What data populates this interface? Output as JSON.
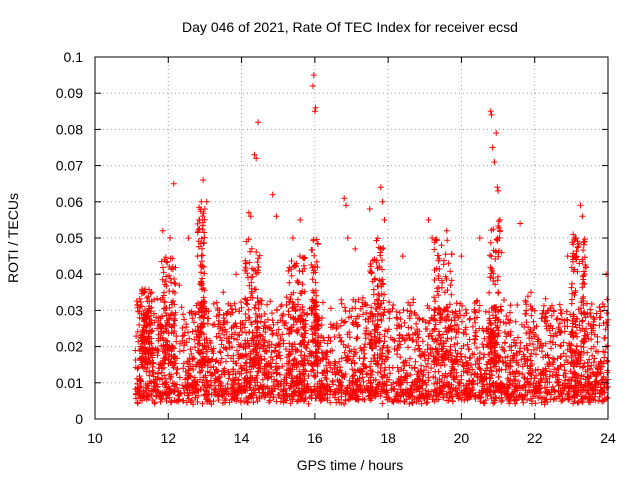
{
  "chart_data": {
    "type": "scatter",
    "title": "Day 046 of 2021, Rate Of TEC Index for receiver ecsd",
    "xlabel": "GPS time / hours",
    "ylabel": "ROTI / TECUs",
    "xlim": [
      10,
      24
    ],
    "ylim": [
      0,
      0.1
    ],
    "x_ticks": [
      10,
      12,
      14,
      16,
      18,
      20,
      22,
      24
    ],
    "y_ticks": [
      0,
      0.01,
      0.02,
      0.03,
      0.04,
      0.05,
      0.06,
      0.07,
      0.08,
      0.09,
      0.1
    ],
    "x_tick_labels": [
      "10",
      "12",
      "14",
      "16",
      "18",
      "20",
      "22",
      "24"
    ],
    "y_tick_labels": [
      "0",
      "0.01",
      "0.02",
      "0.03",
      "0.04",
      "0.05",
      "0.06",
      "0.07",
      "0.08",
      "0.09",
      "0.1"
    ],
    "grid": true,
    "marker": "+",
    "color": "#ff0000",
    "data_start_hour": 11.1,
    "data_end_hour": 24,
    "baseline_range": [
      0.004,
      0.03
    ],
    "notable_points": [
      {
        "x": 11.35,
        "y": 0.035
      },
      {
        "x": 11.85,
        "y": 0.052
      },
      {
        "x": 11.9,
        "y": 0.044
      },
      {
        "x": 12.05,
        "y": 0.05
      },
      {
        "x": 12.15,
        "y": 0.065
      },
      {
        "x": 12.3,
        "y": 0.037
      },
      {
        "x": 12.55,
        "y": 0.05
      },
      {
        "x": 12.8,
        "y": 0.045
      },
      {
        "x": 12.9,
        "y": 0.06
      },
      {
        "x": 12.95,
        "y": 0.066
      },
      {
        "x": 13.0,
        "y": 0.058
      },
      {
        "x": 13.05,
        "y": 0.06
      },
      {
        "x": 13.5,
        "y": 0.035
      },
      {
        "x": 13.85,
        "y": 0.04
      },
      {
        "x": 14.2,
        "y": 0.057
      },
      {
        "x": 14.25,
        "y": 0.056
      },
      {
        "x": 14.35,
        "y": 0.073
      },
      {
        "x": 14.4,
        "y": 0.072
      },
      {
        "x": 14.45,
        "y": 0.082
      },
      {
        "x": 14.85,
        "y": 0.062
      },
      {
        "x": 14.95,
        "y": 0.056
      },
      {
        "x": 15.4,
        "y": 0.05
      },
      {
        "x": 15.6,
        "y": 0.055
      },
      {
        "x": 15.95,
        "y": 0.092
      },
      {
        "x": 15.97,
        "y": 0.095
      },
      {
        "x": 16.0,
        "y": 0.085
      },
      {
        "x": 16.02,
        "y": 0.086
      },
      {
        "x": 16.8,
        "y": 0.061
      },
      {
        "x": 16.85,
        "y": 0.059
      },
      {
        "x": 16.9,
        "y": 0.05
      },
      {
        "x": 17.1,
        "y": 0.047
      },
      {
        "x": 17.5,
        "y": 0.058
      },
      {
        "x": 17.8,
        "y": 0.064
      },
      {
        "x": 17.85,
        "y": 0.06
      },
      {
        "x": 17.9,
        "y": 0.055
      },
      {
        "x": 18.4,
        "y": 0.045
      },
      {
        "x": 19.1,
        "y": 0.055
      },
      {
        "x": 19.2,
        "y": 0.05
      },
      {
        "x": 19.6,
        "y": 0.052
      },
      {
        "x": 20.0,
        "y": 0.045
      },
      {
        "x": 20.5,
        "y": 0.05
      },
      {
        "x": 20.8,
        "y": 0.085
      },
      {
        "x": 20.82,
        "y": 0.084
      },
      {
        "x": 20.85,
        "y": 0.075
      },
      {
        "x": 20.9,
        "y": 0.071
      },
      {
        "x": 20.95,
        "y": 0.079
      },
      {
        "x": 20.98,
        "y": 0.064
      },
      {
        "x": 21.0,
        "y": 0.063
      },
      {
        "x": 21.05,
        "y": 0.055
      },
      {
        "x": 21.1,
        "y": 0.046
      },
      {
        "x": 21.6,
        "y": 0.054
      },
      {
        "x": 21.9,
        "y": 0.035
      },
      {
        "x": 22.9,
        "y": 0.045
      },
      {
        "x": 23.05,
        "y": 0.051
      },
      {
        "x": 23.1,
        "y": 0.05
      },
      {
        "x": 23.25,
        "y": 0.059
      },
      {
        "x": 23.3,
        "y": 0.056
      },
      {
        "x": 23.4,
        "y": 0.042
      },
      {
        "x": 23.95,
        "y": 0.04
      }
    ],
    "dense_bursts": [
      {
        "center": 11.4,
        "width": 0.3,
        "max": 0.036
      },
      {
        "center": 12.0,
        "width": 0.4,
        "max": 0.045
      },
      {
        "center": 12.9,
        "width": 0.2,
        "max": 0.06
      },
      {
        "center": 14.3,
        "width": 0.4,
        "max": 0.05
      },
      {
        "center": 15.5,
        "width": 0.5,
        "max": 0.045
      },
      {
        "center": 16.0,
        "width": 0.2,
        "max": 0.05
      },
      {
        "center": 17.7,
        "width": 0.4,
        "max": 0.05
      },
      {
        "center": 19.5,
        "width": 0.5,
        "max": 0.05
      },
      {
        "center": 20.9,
        "width": 0.3,
        "max": 0.055
      },
      {
        "center": 23.2,
        "width": 0.4,
        "max": 0.05
      }
    ]
  }
}
